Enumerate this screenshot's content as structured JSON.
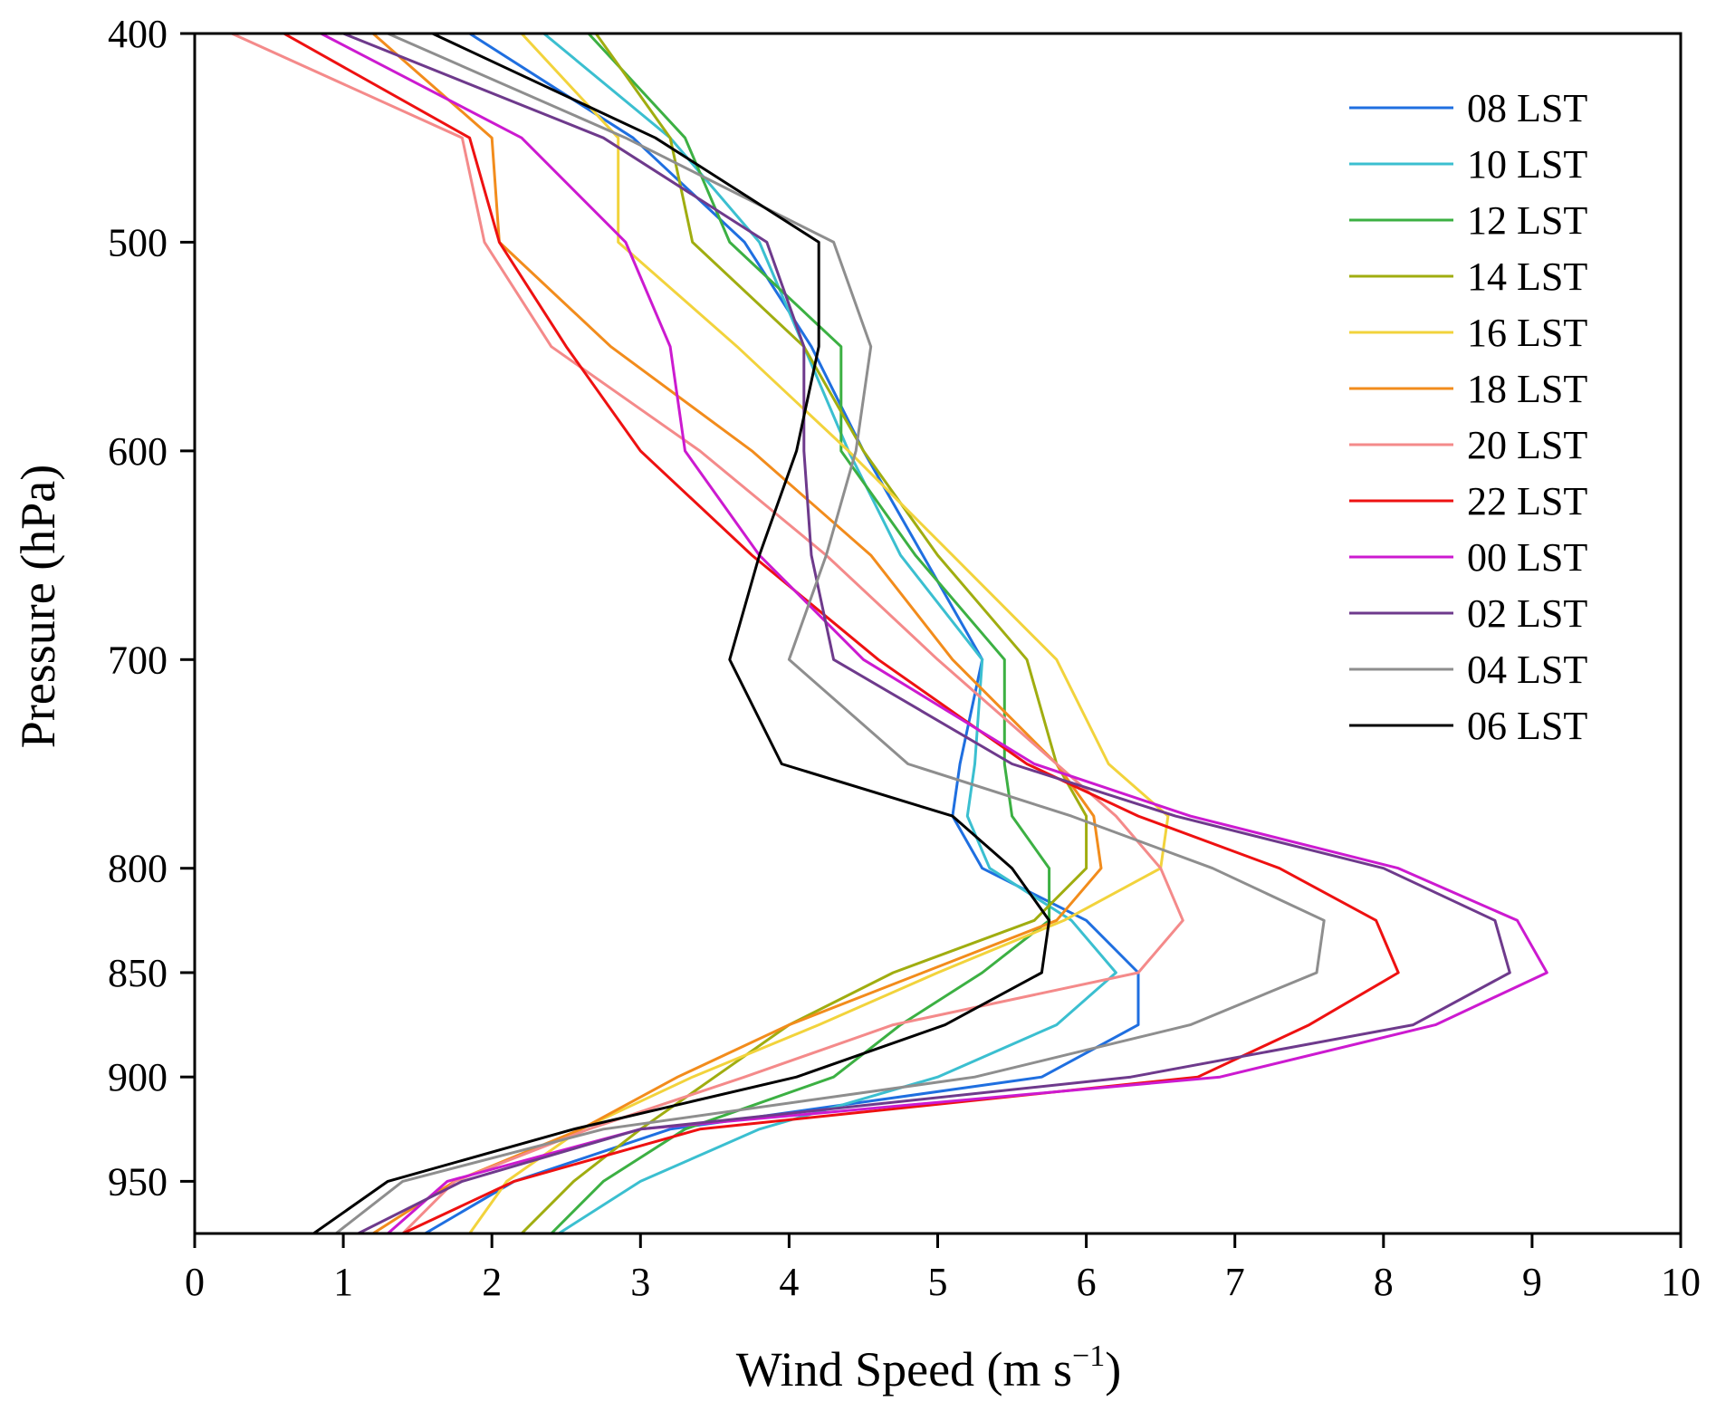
{
  "chart_data": {
    "type": "line",
    "title": "",
    "xlabel": "Wind Speed (m s",
    "xlabel_sup": "−1",
    "xlabel_close": ")",
    "ylabel": "Pressure (hPa)",
    "xlim": [
      0,
      10
    ],
    "ylim": [
      400,
      975
    ],
    "y_inverted": true,
    "x_ticks": [
      0,
      1,
      2,
      3,
      4,
      5,
      6,
      7,
      8,
      9,
      10
    ],
    "y_ticks": [
      400,
      500,
      600,
      700,
      800,
      850,
      900,
      950
    ],
    "legend_position": "top-right",
    "pressure_levels": [
      975,
      950,
      925,
      900,
      875,
      850,
      825,
      800,
      775,
      750,
      700,
      650,
      600,
      550,
      500,
      450,
      400
    ],
    "series": [
      {
        "name": "08 LST",
        "color": "#1f6fe0",
        "values": [
          1.55,
          2.15,
          3.2,
          5.7,
          6.35,
          6.35,
          6.0,
          5.3,
          5.1,
          5.15,
          5.3,
          4.9,
          4.5,
          4.15,
          3.7,
          2.95,
          1.85
        ]
      },
      {
        "name": "10 LST",
        "color": "#3bbfd0",
        "values": [
          2.45,
          3.0,
          3.8,
          5.0,
          5.8,
          6.2,
          5.9,
          5.35,
          5.2,
          5.25,
          5.3,
          4.75,
          4.4,
          4.1,
          3.8,
          3.2,
          2.35
        ]
      },
      {
        "name": "12 LST",
        "color": "#3cb043",
        "values": [
          2.4,
          2.75,
          3.3,
          4.3,
          4.75,
          5.3,
          5.75,
          5.75,
          5.5,
          5.45,
          5.45,
          4.85,
          4.35,
          4.35,
          3.6,
          3.3,
          2.65
        ]
      },
      {
        "name": "14 LST",
        "color": "#a0ad10",
        "values": [
          2.2,
          2.55,
          3.0,
          3.5,
          4.0,
          4.7,
          5.65,
          6.0,
          6.0,
          5.8,
          5.6,
          5.0,
          4.5,
          4.1,
          3.35,
          3.2,
          2.7
        ]
      },
      {
        "name": "16 LST",
        "color": "#f2d33c",
        "values": [
          1.85,
          2.1,
          2.6,
          3.35,
          4.2,
          5.0,
          5.85,
          6.5,
          6.55,
          6.15,
          5.8,
          5.1,
          4.4,
          3.65,
          2.85,
          2.85,
          2.2
        ]
      },
      {
        "name": "18 LST",
        "color": "#f28c1c",
        "values": [
          1.2,
          1.75,
          2.6,
          3.25,
          4.0,
          4.9,
          5.8,
          6.1,
          6.05,
          5.8,
          5.1,
          4.55,
          3.75,
          2.8,
          2.05,
          2.0,
          1.2
        ]
      },
      {
        "name": "20 LST",
        "color": "#f48a8a",
        "values": [
          1.4,
          1.75,
          2.65,
          3.7,
          4.7,
          6.35,
          6.65,
          6.5,
          6.2,
          5.8,
          5.0,
          4.25,
          3.4,
          2.4,
          1.95,
          1.8,
          0.25
        ]
      },
      {
        "name": "22 LST",
        "color": "#ee1111",
        "values": [
          1.4,
          2.15,
          3.4,
          6.75,
          7.5,
          8.1,
          7.95,
          7.3,
          6.35,
          5.6,
          4.6,
          3.75,
          3.0,
          2.5,
          2.05,
          1.85,
          0.6
        ]
      },
      {
        "name": "00 LST",
        "color": "#cc1ad0",
        "values": [
          1.3,
          1.7,
          3.0,
          6.9,
          8.35,
          9.1,
          8.9,
          8.1,
          6.7,
          5.65,
          4.5,
          3.8,
          3.3,
          3.2,
          2.9,
          2.2,
          0.85
        ]
      },
      {
        "name": "02 LST",
        "color": "#6e3a8c",
        "values": [
          1.1,
          1.8,
          3.0,
          6.3,
          8.2,
          8.85,
          8.75,
          8.0,
          6.6,
          5.5,
          4.3,
          4.15,
          4.1,
          4.1,
          3.85,
          2.75,
          1.0
        ]
      },
      {
        "name": "04 LST",
        "color": "#8e8e8e",
        "values": [
          0.95,
          1.4,
          2.75,
          5.25,
          6.7,
          7.55,
          7.6,
          6.85,
          5.9,
          4.8,
          4.0,
          4.25,
          4.45,
          4.55,
          4.3,
          2.9,
          1.3
        ]
      },
      {
        "name": "06 LST",
        "color": "#000000",
        "values": [
          0.8,
          1.3,
          2.55,
          4.05,
          5.05,
          5.7,
          5.75,
          5.5,
          5.1,
          3.95,
          3.6,
          3.8,
          4.05,
          4.2,
          4.2,
          3.1,
          1.6
        ]
      }
    ]
  }
}
